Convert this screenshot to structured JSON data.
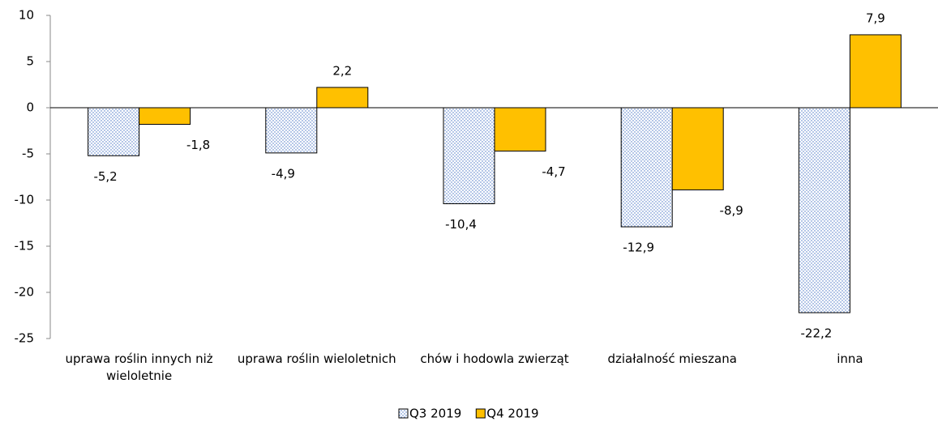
{
  "chart_data": {
    "type": "bar",
    "categories": [
      "uprawa roślin innych niż wieloletnie",
      "uprawa roślin wieloletnich",
      "chów i hodowla zwierząt",
      "działalność mieszana",
      "inna"
    ],
    "series": [
      {
        "name": "Q3 2019",
        "color": "#4472c4",
        "pattern": "dots",
        "values": [
          -5.2,
          -4.9,
          -10.4,
          -12.9,
          -22.2
        ],
        "value_labels": [
          "-5,2",
          "-4,9",
          "-10,4",
          "-12,9",
          "-22,2"
        ]
      },
      {
        "name": "Q4 2019",
        "color": "#ffc000",
        "values": [
          -1.8,
          2.2,
          -4.7,
          -8.9,
          7.9
        ],
        "value_labels": [
          "-1,8",
          "2,2",
          "-4,7",
          "-8,9",
          "7,9"
        ]
      }
    ],
    "ylim": [
      -25,
      10
    ],
    "yticks": [
      -25,
      -20,
      -15,
      -10,
      -5,
      0,
      5,
      10
    ],
    "legend": "bottom"
  }
}
